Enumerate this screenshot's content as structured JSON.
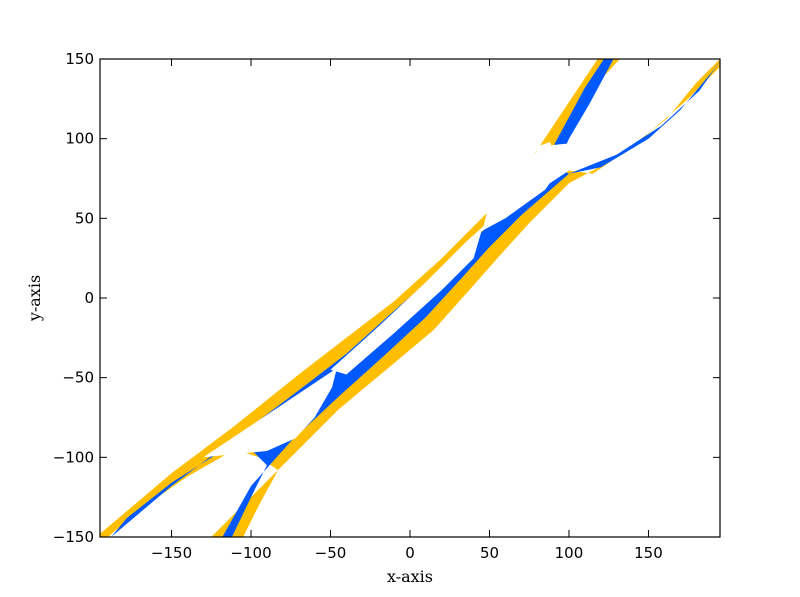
{
  "chart_data": {
    "type": "contour",
    "xlabel": "x-axis",
    "ylabel": "y-axis",
    "xlim": [
      -195,
      195
    ],
    "ylim": [
      -150,
      150
    ],
    "xticks": [
      -150,
      -100,
      -50,
      0,
      50,
      100,
      150
    ],
    "yticks": [
      -150,
      -100,
      -50,
      0,
      50,
      100,
      150
    ],
    "xtick_labels": [
      "−150",
      "−100",
      "−50",
      "0",
      "50",
      "100",
      "150"
    ],
    "ytick_labels": [
      "−150",
      "−100",
      "−50",
      "0",
      "50",
      "100",
      "150"
    ],
    "grid": false,
    "colors": {
      "outer_band": "#ffbf00",
      "inner_band": "#0059ff",
      "background": "#ffffff"
    },
    "regions": [
      {
        "name": "outer-band",
        "color": "#ffbf00",
        "polygons": [
          [
            [
              -195,
              -148
            ],
            [
              -150,
              -110
            ],
            [
              -110,
              -80
            ],
            [
              -70,
              -48
            ],
            [
              -40,
              -25
            ],
            [
              -10,
              -2
            ],
            [
              20,
              25
            ],
            [
              50,
              55
            ],
            [
              70,
              78
            ],
            [
              90,
              108
            ],
            [
              110,
              138
            ],
            [
              118,
              150
            ],
            [
              132,
              150
            ],
            [
              120,
              137
            ],
            [
              107,
              117
            ],
            [
              97,
              95
            ],
            [
              100,
              80
            ],
            [
              115,
              78
            ],
            [
              140,
              95
            ],
            [
              162,
              113
            ],
            [
              180,
              135
            ],
            [
              195,
              150
            ],
            [
              200,
              150
            ],
            [
              175,
              125
            ],
            [
              152,
              105
            ],
            [
              128,
              87
            ],
            [
              100,
              72
            ],
            [
              75,
              47
            ],
            [
              55,
              25
            ],
            [
              40,
              8
            ],
            [
              15,
              -20
            ],
            [
              -15,
              -45
            ],
            [
              -45,
              -70
            ],
            [
              -75,
              -100
            ],
            [
              -105,
              -130
            ],
            [
              -125,
              -150
            ],
            [
              -105,
              -150
            ],
            [
              -95,
              -130
            ],
            [
              -83,
              -108
            ],
            [
              -95,
              -100
            ],
            [
              -110,
              -95
            ],
            [
              -140,
              -112
            ],
            [
              -170,
              -133
            ],
            [
              -190,
              -150
            ],
            [
              -195,
              -150
            ]
          ]
        ]
      },
      {
        "name": "inner-band",
        "color": "#0059ff",
        "polygons": [
          [
            [
              -188,
              -150
            ],
            [
              -150,
              -118
            ],
            [
              -110,
              -88
            ],
            [
              -70,
              -58
            ],
            [
              -40,
              -35
            ],
            [
              -10,
              -8
            ],
            [
              20,
              18
            ],
            [
              50,
              46
            ],
            [
              70,
              68
            ],
            [
              90,
              95
            ],
            [
              110,
              132
            ],
            [
              122,
              150
            ],
            [
              128,
              150
            ],
            [
              113,
              122
            ],
            [
              100,
              100
            ],
            [
              92,
              82
            ],
            [
              100,
              78
            ],
            [
              120,
              82
            ],
            [
              150,
              100
            ],
            [
              170,
              118
            ],
            [
              190,
              142
            ],
            [
              196,
              150
            ],
            [
              182,
              130
            ],
            [
              158,
              108
            ],
            [
              130,
              90
            ],
            [
              100,
              78
            ],
            [
              70,
              52
            ],
            [
              50,
              32
            ],
            [
              32,
              12
            ],
            [
              10,
              -12
            ],
            [
              -15,
              -35
            ],
            [
              -45,
              -62
            ],
            [
              -75,
              -90
            ],
            [
              -100,
              -118
            ],
            [
              -118,
              -150
            ],
            [
              -112,
              -150
            ],
            [
              -100,
              -125
            ],
            [
              -90,
              -105
            ],
            [
              -100,
              -95
            ],
            [
              -120,
              -97
            ],
            [
              -150,
              -116
            ],
            [
              -178,
              -138
            ],
            [
              -188,
              -150
            ]
          ]
        ]
      },
      {
        "name": "center-white",
        "color": "#ffffff",
        "polygons": [
          [
            [
              -130,
              -100
            ],
            [
              -100,
              -80
            ],
            [
              -70,
              -60
            ],
            [
              -46,
              -44
            ],
            [
              -49,
              -56
            ],
            [
              -60,
              -75
            ],
            [
              -72,
              -88
            ],
            [
              -90,
              -96
            ]
          ],
          [
            [
              -50,
              -45
            ],
            [
              -20,
              -18
            ],
            [
              10,
              10
            ],
            [
              35,
              35
            ],
            [
              65,
              62
            ],
            [
              78,
              80
            ],
            [
              80,
              95
            ],
            [
              88,
              98
            ],
            [
              95,
              82
            ],
            [
              85,
              68
            ],
            [
              60,
              50
            ],
            [
              45,
              42
            ],
            [
              40,
              25
            ],
            [
              20,
              5
            ],
            [
              -10,
              -22
            ],
            [
              -40,
              -48
            ]
          ],
          [
            [
              46,
              44
            ],
            [
              49,
              56
            ],
            [
              60,
              75
            ],
            [
              72,
              88
            ],
            [
              90,
              96
            ],
            [
              130,
              100
            ],
            [
              100,
              80
            ],
            [
              70,
              60
            ]
          ]
        ]
      }
    ]
  }
}
